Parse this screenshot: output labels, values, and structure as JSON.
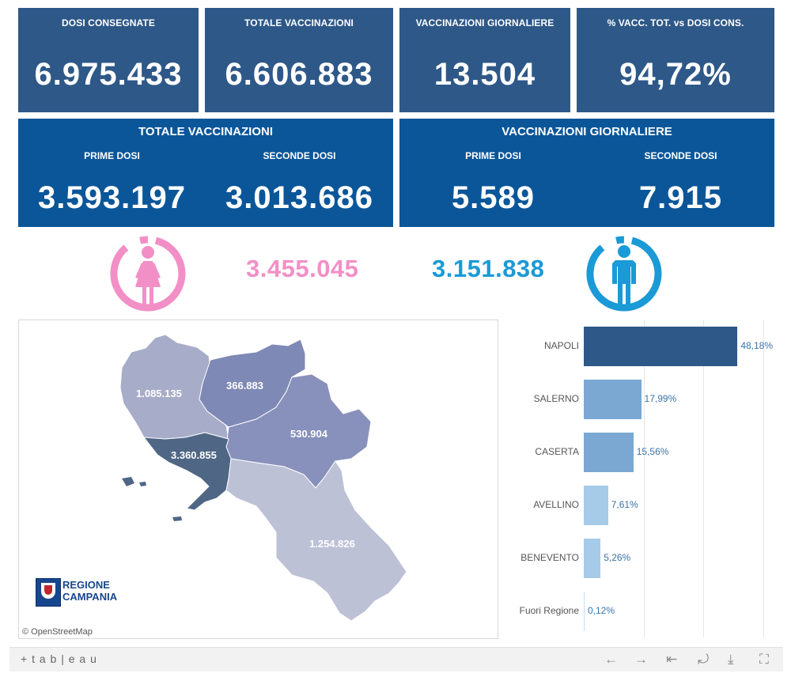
{
  "kpis": [
    {
      "title": "DOSI  CONSEGNATE",
      "value": "6.975.433"
    },
    {
      "title": "TOTALE VACCINAZIONI",
      "value": "6.606.883"
    },
    {
      "title": "VACCINAZIONI GIORNALIERE",
      "value": "13.504"
    },
    {
      "title": "% VACC. TOT. vs DOSI CONS.",
      "value": "94,72%"
    }
  ],
  "panels": [
    {
      "title": "TOTALE VACCINAZIONI",
      "first_label": "PRIME DOSI",
      "first_value": "3.593.197",
      "second_label": "SECONDE DOSI",
      "second_value": "3.013.686"
    },
    {
      "title": "VACCINAZIONI GIORNALIERE",
      "first_label": "PRIME DOSI",
      "first_value": "5.589",
      "second_label": "SECONDE DOSI",
      "second_value": "7.915"
    }
  ],
  "gender": {
    "female_value": "3.455.045",
    "male_value": "3.151.838",
    "female_color": "#f28fc6",
    "male_color": "#1a9ad6"
  },
  "map": {
    "attribution": "© OpenStreetMap",
    "logo_line1": "REGIONE",
    "logo_line2": "CAMPANIA",
    "regions": [
      {
        "name": "Caserta",
        "value": "1.085.135",
        "color": "#a7adc8"
      },
      {
        "name": "Benevento",
        "value": "366.883",
        "color": "#7f89b5"
      },
      {
        "name": "Avellino",
        "value": "530.904",
        "color": "#8891bb"
      },
      {
        "name": "Napoli",
        "value": "3.360.855",
        "color": "#4f6785"
      },
      {
        "name": "Salerno",
        "value": "1.254.826",
        "color": "#bcc1d6"
      }
    ]
  },
  "chart_data": {
    "type": "bar",
    "orientation": "horizontal",
    "categories": [
      "NAPOLI",
      "SALERNO",
      "CASERTA",
      "AVELLINO",
      "BENEVENTO",
      "Fuori Regione"
    ],
    "values": [
      48.18,
      17.99,
      15.56,
      7.61,
      5.26,
      0.12
    ],
    "labels": [
      "48,18%",
      "17,99%",
      "15,56%",
      "7,61%",
      "5,26%",
      "0,12%"
    ],
    "colors": [
      "#2e5888",
      "#7aa8d2",
      "#7aa8d2",
      "#a6cbe8",
      "#a6cbe8",
      "#c8def2"
    ],
    "xlim": [
      0,
      60
    ],
    "grid": true
  },
  "toolbar": {
    "brand": "+ t a b | e a u",
    "icons": [
      "undo-icon",
      "redo-icon",
      "revert-icon",
      "share-icon",
      "download-icon",
      "fullscreen-icon"
    ]
  }
}
